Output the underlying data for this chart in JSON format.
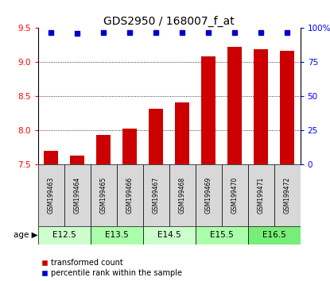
{
  "title": "GDS2950 / 168007_f_at",
  "samples": [
    "GSM199463",
    "GSM199464",
    "GSM199465",
    "GSM199466",
    "GSM199467",
    "GSM199468",
    "GSM199469",
    "GSM199470",
    "GSM199471",
    "GSM199472"
  ],
  "transformed_counts": [
    7.7,
    7.63,
    7.93,
    8.02,
    8.32,
    8.41,
    9.09,
    9.22,
    9.19,
    9.17
  ],
  "percentile_ranks": [
    97,
    96,
    97,
    97,
    97,
    97,
    97,
    97,
    97,
    97
  ],
  "groups": [
    {
      "label": "E12.5",
      "indices": [
        0,
        1
      ],
      "color": "#ccffcc"
    },
    {
      "label": "E13.5",
      "indices": [
        2,
        3
      ],
      "color": "#aaffaa"
    },
    {
      "label": "E14.5",
      "indices": [
        4,
        5
      ],
      "color": "#ccffcc"
    },
    {
      "label": "E15.5",
      "indices": [
        6,
        7
      ],
      "color": "#aaffaa"
    },
    {
      "label": "E16.5",
      "indices": [
        8,
        9
      ],
      "color": "#77ee77"
    }
  ],
  "ylim_left": [
    7.5,
    9.5
  ],
  "ylim_right": [
    0,
    100
  ],
  "yticks_left": [
    7.5,
    8.0,
    8.5,
    9.0,
    9.5
  ],
  "yticks_right": [
    0,
    25,
    50,
    75,
    100
  ],
  "bar_color": "#cc0000",
  "dot_color": "#0000cc",
  "bar_width": 0.55,
  "sample_box_color": "#d8d8d8",
  "legend_items": [
    {
      "label": "transformed count",
      "color": "#cc0000"
    },
    {
      "label": "percentile rank within the sample",
      "color": "#0000cc"
    }
  ]
}
